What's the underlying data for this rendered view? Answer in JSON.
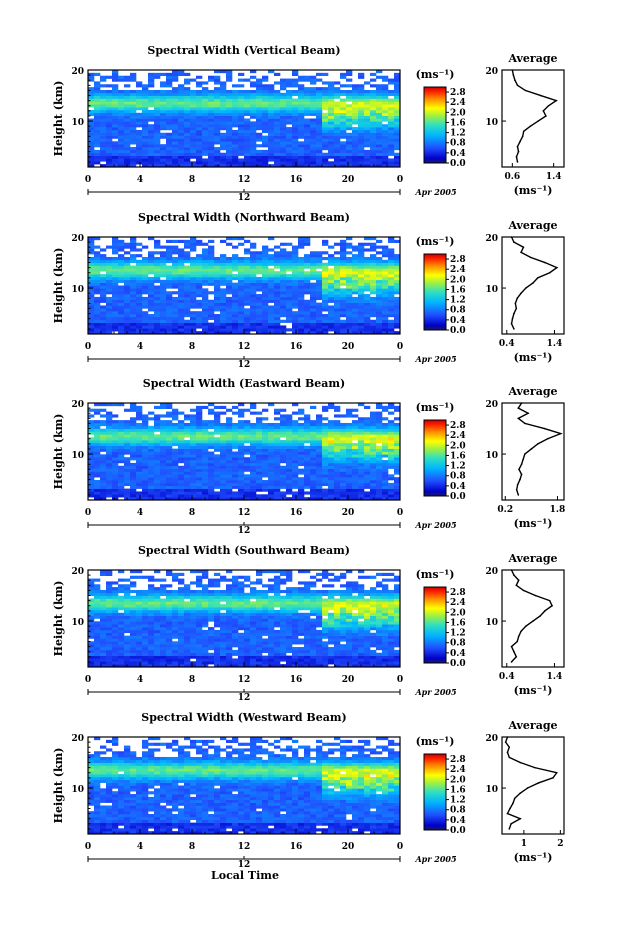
{
  "figure": {
    "xlabel": "Local Time",
    "date_label": "Apr 2005",
    "color_unit": "(ms⁻¹)",
    "avg_title": "Average",
    "avg_xlabel": "(ms⁻¹)",
    "ylabel": "Height (km)"
  },
  "chart_data": [
    {
      "type": "heatmap",
      "title": "Spectral Width (Vertical Beam)",
      "xlabel": "Local Time",
      "ylabel": "Height (km)",
      "x_ticks": [
        "0",
        "4",
        "8",
        "12",
        "16",
        "20",
        "0"
      ],
      "xlim": [
        0,
        24
      ],
      "y_ticks": [
        "10",
        "20"
      ],
      "ylim": [
        1,
        20
      ],
      "colorbar": {
        "unit": "(ms⁻¹)",
        "ticks": [
          "0.0",
          "0.4",
          "0.8",
          "1.2",
          "1.6",
          "2.0",
          "2.4",
          "2.8"
        ],
        "range": [
          0,
          3.0
        ]
      },
      "profile": {
        "title": "Average",
        "xlabel": "(ms⁻¹)",
        "x_ticks": [
          "0.6",
          "1.4"
        ],
        "xlim": [
          0.4,
          1.6
        ],
        "heights": [
          2,
          3,
          4,
          5,
          6,
          7,
          8,
          9,
          10,
          11,
          12,
          13,
          14,
          15,
          16,
          17,
          18,
          19,
          20
        ],
        "values": [
          0.7,
          0.68,
          0.72,
          0.7,
          0.75,
          0.8,
          0.82,
          0.95,
          1.1,
          1.25,
          1.2,
          1.3,
          1.45,
          1.15,
          0.85,
          0.7,
          0.65,
          0.62,
          0.6
        ]
      }
    },
    {
      "type": "heatmap",
      "title": "Spectral Width (Northward Beam)",
      "xlabel": "Local Time",
      "ylabel": "Height (km)",
      "x_ticks": [
        "0",
        "4",
        "8",
        "12",
        "16",
        "20",
        "0"
      ],
      "xlim": [
        0,
        24
      ],
      "y_ticks": [
        "10",
        "20"
      ],
      "ylim": [
        1,
        20
      ],
      "colorbar": {
        "unit": "(ms⁻¹)",
        "ticks": [
          "0.0",
          "0.4",
          "0.8",
          "1.2",
          "1.6",
          "2.0",
          "2.4",
          "2.8"
        ],
        "range": [
          0,
          3.0
        ]
      },
      "profile": {
        "title": "Average",
        "xlabel": "(ms⁻¹)",
        "x_ticks": [
          "0.4",
          "1.4"
        ],
        "xlim": [
          0.3,
          1.6
        ],
        "heights": [
          2,
          3,
          4,
          5,
          6,
          7,
          8,
          9,
          10,
          11,
          12,
          13,
          14,
          15,
          16,
          17,
          18,
          19,
          20
        ],
        "values": [
          0.55,
          0.5,
          0.52,
          0.55,
          0.6,
          0.58,
          0.62,
          0.7,
          0.8,
          0.95,
          1.05,
          1.3,
          1.45,
          1.2,
          0.9,
          0.7,
          0.75,
          0.55,
          0.5
        ]
      }
    },
    {
      "type": "heatmap",
      "title": "Spectral Width (Eastward Beam)",
      "xlabel": "Local Time",
      "ylabel": "Height (km)",
      "x_ticks": [
        "0",
        "4",
        "8",
        "12",
        "16",
        "20",
        "0"
      ],
      "xlim": [
        0,
        24
      ],
      "y_ticks": [
        "10",
        "20"
      ],
      "ylim": [
        1,
        20
      ],
      "colorbar": {
        "unit": "(ms⁻¹)",
        "ticks": [
          "0.0",
          "0.4",
          "0.8",
          "1.2",
          "1.6",
          "2.0",
          "2.4",
          "2.8"
        ],
        "range": [
          0,
          3.0
        ]
      },
      "profile": {
        "title": "Average",
        "xlabel": "(ms⁻¹)",
        "x_ticks": [
          "0.2",
          "1.8"
        ],
        "xlim": [
          0.1,
          2.0
        ],
        "heights": [
          2,
          3,
          4,
          5,
          6,
          7,
          8,
          9,
          10,
          11,
          12,
          13,
          14,
          15,
          16,
          17,
          18,
          19,
          20
        ],
        "values": [
          0.6,
          0.55,
          0.58,
          0.65,
          0.7,
          0.62,
          0.7,
          0.75,
          0.8,
          1.0,
          1.2,
          1.5,
          1.9,
          1.4,
          0.8,
          0.6,
          0.9,
          0.6,
          0.7
        ]
      }
    },
    {
      "type": "heatmap",
      "title": "Spectral Width (Southward Beam)",
      "xlabel": "Local Time",
      "ylabel": "Height (km)",
      "x_ticks": [
        "0",
        "4",
        "8",
        "12",
        "16",
        "20",
        "0"
      ],
      "xlim": [
        0,
        24
      ],
      "y_ticks": [
        "10",
        "20"
      ],
      "ylim": [
        1,
        20
      ],
      "colorbar": {
        "unit": "(ms⁻¹)",
        "ticks": [
          "0.0",
          "0.4",
          "0.8",
          "1.2",
          "1.6",
          "2.0",
          "2.4",
          "2.8"
        ],
        "range": [
          0,
          3.0
        ]
      },
      "profile": {
        "title": "Average",
        "xlabel": "(ms⁻¹)",
        "x_ticks": [
          "0.4",
          "1.4"
        ],
        "xlim": [
          0.3,
          1.6
        ],
        "heights": [
          2,
          3,
          4,
          5,
          6,
          7,
          8,
          9,
          10,
          11,
          12,
          13,
          14,
          15,
          16,
          17,
          18,
          19,
          20
        ],
        "values": [
          0.5,
          0.6,
          0.55,
          0.5,
          0.62,
          0.65,
          0.7,
          0.8,
          0.95,
          1.1,
          1.2,
          1.35,
          1.3,
          1.0,
          0.75,
          0.6,
          0.65,
          0.55,
          0.5
        ]
      }
    },
    {
      "type": "heatmap",
      "title": "Spectral Width (Westward Beam)",
      "xlabel": "Local Time",
      "ylabel": "Height (km)",
      "x_ticks": [
        "0",
        "4",
        "8",
        "12",
        "16",
        "20",
        "0"
      ],
      "xlim": [
        0,
        24
      ],
      "y_ticks": [
        "10",
        "20"
      ],
      "ylim": [
        1,
        20
      ],
      "colorbar": {
        "unit": "(ms⁻¹)",
        "ticks": [
          "0.0",
          "0.4",
          "0.8",
          "1.2",
          "1.6",
          "2.0",
          "2.4",
          "2.8"
        ],
        "range": [
          0,
          3.0
        ]
      },
      "profile": {
        "title": "Average",
        "xlabel": "(ms⁻¹)",
        "x_ticks": [
          "1",
          "2"
        ],
        "xlim": [
          0.4,
          2.1
        ],
        "heights": [
          2,
          3,
          4,
          5,
          6,
          7,
          8,
          9,
          10,
          11,
          12,
          13,
          14,
          15,
          16,
          17,
          18,
          19,
          20
        ],
        "values": [
          0.6,
          0.65,
          0.9,
          0.55,
          0.62,
          0.7,
          0.75,
          0.9,
          1.1,
          1.4,
          1.8,
          1.9,
          1.3,
          0.9,
          0.6,
          0.55,
          0.6,
          0.5,
          0.55
        ]
      }
    }
  ]
}
